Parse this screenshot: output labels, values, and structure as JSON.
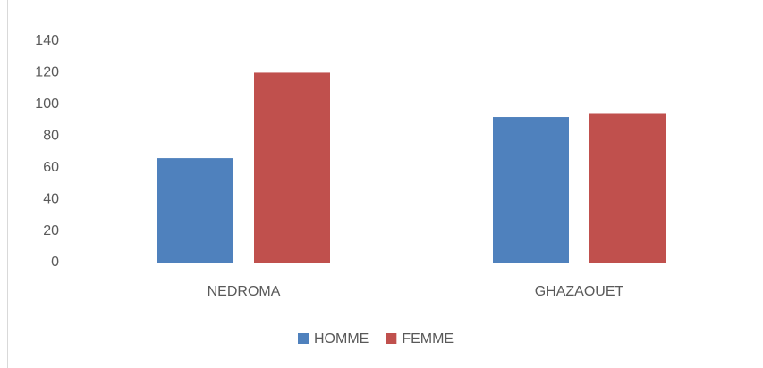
{
  "chart_data": {
    "type": "bar",
    "categories": [
      "NEDROMA",
      "GHAZAOUET"
    ],
    "series": [
      {
        "name": "HOMME",
        "color": "#4f81bd",
        "values": [
          66,
          92
        ]
      },
      {
        "name": "FEMME",
        "color": "#c0504d",
        "values": [
          120,
          94
        ]
      }
    ],
    "ylim": [
      0,
      140
    ],
    "yticks": [
      0,
      20,
      40,
      60,
      80,
      100,
      120,
      140
    ],
    "grid": false,
    "legend": "bottom"
  }
}
